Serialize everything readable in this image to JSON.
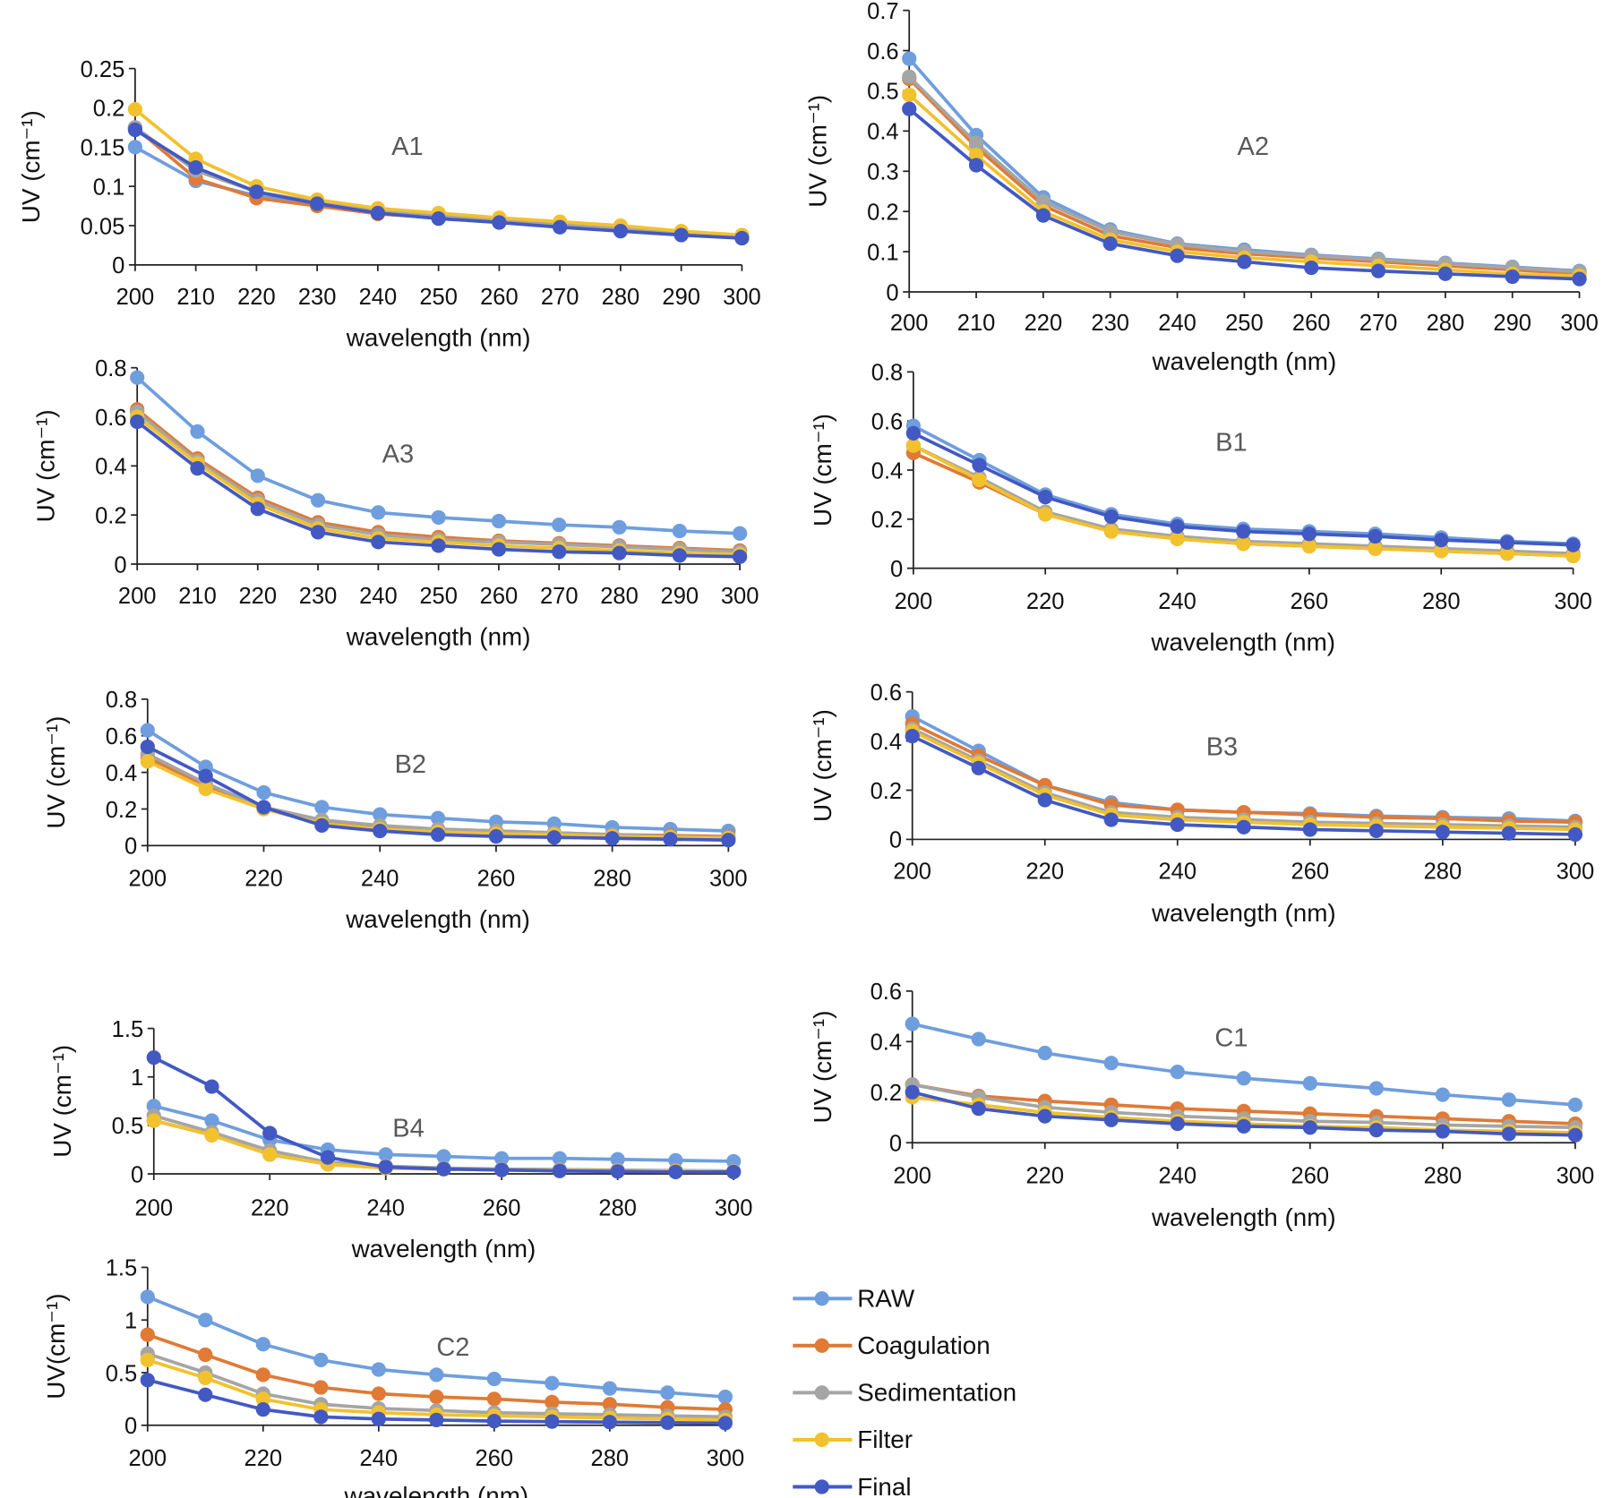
{
  "chart_data": {
    "type": "line",
    "legend": {
      "placement": "bottom-right",
      "entries": [
        "RAW",
        "Coagulation",
        "Sedimentation",
        "Filter",
        "Final"
      ]
    },
    "series_colors": {
      "RAW": "#6f9ede",
      "Coagulation": "#e07a35",
      "Sedimentation": "#a5a5a5",
      "Filter": "#f2c12e",
      "Final": "#4259c3"
    },
    "x": [
      200,
      210,
      220,
      230,
      240,
      250,
      260,
      270,
      280,
      290,
      300
    ],
    "grid": false,
    "panels": [
      {
        "title": "A1",
        "xlabel": "wavelength (nm)",
        "ylabel": "UV (cm⁻¹)",
        "ylim": [
          0,
          0.25
        ],
        "yticks": [
          "0",
          "0.05",
          "0.1",
          "0.15",
          "0.2",
          "0.25"
        ],
        "xticks": [
          "200",
          "210",
          "220",
          "230",
          "240",
          "250",
          "260",
          "270",
          "280",
          "290",
          "300"
        ],
        "series": [
          {
            "name": "RAW",
            "values": [
              0.15,
              0.107,
              0.088,
              0.077,
              0.066,
              0.06,
              0.055,
              0.05,
              0.045,
              0.04,
              0.035
            ]
          },
          {
            "name": "Coagulation",
            "values": [
              0.175,
              0.11,
              0.085,
              0.075,
              0.065,
              0.06,
              0.055,
              0.05,
              0.045,
              0.04,
              0.034
            ]
          },
          {
            "name": "Sedimentation",
            "values": [
              0.175,
              0.12,
              0.093,
              0.08,
              0.068,
              0.062,
              0.057,
              0.052,
              0.047,
              0.041,
              0.036
            ]
          },
          {
            "name": "Filter",
            "values": [
              0.198,
              0.135,
              0.1,
              0.083,
              0.072,
              0.066,
              0.06,
              0.055,
              0.05,
              0.043,
              0.038
            ]
          },
          {
            "name": "Final",
            "values": [
              0.172,
              0.124,
              0.093,
              0.078,
              0.066,
              0.059,
              0.054,
              0.048,
              0.043,
              0.038,
              0.034
            ]
          }
        ]
      },
      {
        "title": "A2",
        "xlabel": "wavelength (nm)",
        "ylabel": "UV (cm⁻¹)",
        "ylim": [
          0,
          0.7
        ],
        "yticks": [
          "0",
          "0.1",
          "0.2",
          "0.3",
          "0.4",
          "0.5",
          "0.6",
          "0.7"
        ],
        "xticks": [
          "200",
          "210",
          "220",
          "230",
          "240",
          "250",
          "260",
          "270",
          "280",
          "290",
          "300"
        ],
        "series": [
          {
            "name": "RAW",
            "values": [
              0.58,
              0.39,
              0.235,
              0.155,
              0.12,
              0.105,
              0.092,
              0.082,
              0.072,
              0.062,
              0.052
            ]
          },
          {
            "name": "Coagulation",
            "values": [
              0.53,
              0.36,
              0.215,
              0.14,
              0.11,
              0.095,
              0.085,
              0.075,
              0.065,
              0.055,
              0.045
            ]
          },
          {
            "name": "Sedimentation",
            "values": [
              0.535,
              0.37,
              0.225,
              0.15,
              0.118,
              0.1,
              0.09,
              0.08,
              0.07,
              0.06,
              0.05
            ]
          },
          {
            "name": "Filter",
            "values": [
              0.49,
              0.34,
              0.2,
              0.13,
              0.1,
              0.085,
              0.075,
              0.065,
              0.055,
              0.045,
              0.04
            ]
          },
          {
            "name": "Final",
            "values": [
              0.455,
              0.315,
              0.19,
              0.12,
              0.09,
              0.075,
              0.06,
              0.052,
              0.045,
              0.038,
              0.032
            ]
          }
        ]
      },
      {
        "title": "A3",
        "xlabel": "wavelength (nm)",
        "ylabel": "UV (cm⁻¹)",
        "ylim": [
          0,
          0.8
        ],
        "yticks": [
          "0",
          "0.2",
          "0.4",
          "0.6",
          "0.8"
        ],
        "xticks": [
          "200",
          "210",
          "220",
          "230",
          "240",
          "250",
          "260",
          "270",
          "280",
          "290",
          "300"
        ],
        "series": [
          {
            "name": "RAW",
            "values": [
              0.76,
              0.54,
              0.36,
              0.26,
              0.21,
              0.19,
              0.175,
              0.16,
              0.15,
              0.135,
              0.125
            ]
          },
          {
            "name": "Coagulation",
            "values": [
              0.63,
              0.43,
              0.27,
              0.17,
              0.13,
              0.11,
              0.095,
              0.085,
              0.075,
              0.065,
              0.055
            ]
          },
          {
            "name": "Sedimentation",
            "values": [
              0.62,
              0.42,
              0.26,
              0.16,
              0.12,
              0.1,
              0.09,
              0.08,
              0.07,
              0.06,
              0.05
            ]
          },
          {
            "name": "Filter",
            "values": [
              0.6,
              0.41,
              0.245,
              0.145,
              0.105,
              0.09,
              0.075,
              0.065,
              0.055,
              0.045,
              0.04
            ]
          },
          {
            "name": "Final",
            "values": [
              0.58,
              0.39,
              0.225,
              0.13,
              0.09,
              0.075,
              0.06,
              0.05,
              0.045,
              0.035,
              0.03
            ]
          }
        ]
      },
      {
        "title": "B1",
        "xlabel": "wavelength (nm)",
        "ylabel": "UV (cm⁻¹)",
        "ylim": [
          0,
          0.8
        ],
        "yticks": [
          "0",
          "0.2",
          "0.4",
          "0.6",
          "0.8"
        ],
        "xticks": [
          "200",
          "220",
          "240",
          "260",
          "280",
          "300"
        ],
        "series": [
          {
            "name": "RAW",
            "values": [
              0.58,
              0.44,
              0.3,
              0.22,
              0.18,
              0.16,
              0.15,
              0.14,
              0.125,
              0.11,
              0.1
            ]
          },
          {
            "name": "Coagulation",
            "values": [
              0.47,
              0.35,
              0.22,
              0.15,
              0.12,
              0.1,
              0.09,
              0.08,
              0.07,
              0.06,
              0.05
            ]
          },
          {
            "name": "Sedimentation",
            "values": [
              0.5,
              0.37,
              0.23,
              0.16,
              0.13,
              0.11,
              0.1,
              0.09,
              0.08,
              0.07,
              0.06
            ]
          },
          {
            "name": "Filter",
            "values": [
              0.5,
              0.36,
              0.22,
              0.15,
              0.12,
              0.1,
              0.09,
              0.08,
              0.07,
              0.06,
              0.05
            ]
          },
          {
            "name": "Final",
            "values": [
              0.55,
              0.42,
              0.29,
              0.21,
              0.17,
              0.15,
              0.14,
              0.13,
              0.115,
              0.105,
              0.095
            ]
          }
        ]
      },
      {
        "title": "B2",
        "xlabel": "wavelength (nm)",
        "ylabel": "UV (cm⁻¹)",
        "ylim": [
          0,
          0.8
        ],
        "yticks": [
          "0",
          "0.2",
          "0.4",
          "0.6",
          "0.8"
        ],
        "xticks": [
          "200",
          "220",
          "240",
          "260",
          "280",
          "300"
        ],
        "series": [
          {
            "name": "RAW",
            "values": [
              0.63,
              0.43,
              0.29,
              0.21,
              0.17,
              0.15,
              0.13,
              0.12,
              0.1,
              0.09,
              0.08
            ]
          },
          {
            "name": "Coagulation",
            "values": [
              0.48,
              0.33,
              0.2,
              0.13,
              0.1,
              0.09,
              0.08,
              0.07,
              0.06,
              0.055,
              0.05
            ]
          },
          {
            "name": "Sedimentation",
            "values": [
              0.5,
              0.34,
              0.21,
              0.14,
              0.11,
              0.09,
              0.08,
              0.07,
              0.06,
              0.05,
              0.045
            ]
          },
          {
            "name": "Filter",
            "values": [
              0.46,
              0.31,
              0.2,
              0.12,
              0.09,
              0.075,
              0.065,
              0.06,
              0.05,
              0.045,
              0.04
            ]
          },
          {
            "name": "Final",
            "values": [
              0.54,
              0.38,
              0.21,
              0.11,
              0.08,
              0.06,
              0.05,
              0.045,
              0.04,
              0.035,
              0.03
            ]
          }
        ]
      },
      {
        "title": "B3",
        "xlabel": "wavelength (nm)",
        "ylabel": "UV (cm⁻¹)",
        "ylim": [
          0,
          0.6
        ],
        "yticks": [
          "0",
          "0.2",
          "0.4",
          "0.6"
        ],
        "xticks": [
          "200",
          "220",
          "240",
          "260",
          "280",
          "300"
        ],
        "series": [
          {
            "name": "RAW",
            "values": [
              0.5,
              0.36,
              0.22,
              0.15,
              0.12,
              0.11,
              0.105,
              0.095,
              0.09,
              0.085,
              0.075
            ]
          },
          {
            "name": "Coagulation",
            "values": [
              0.47,
              0.34,
              0.22,
              0.14,
              0.12,
              0.11,
              0.1,
              0.09,
              0.085,
              0.075,
              0.07
            ]
          },
          {
            "name": "Sedimentation",
            "values": [
              0.45,
              0.32,
              0.19,
              0.11,
              0.09,
              0.08,
              0.07,
              0.065,
              0.06,
              0.055,
              0.05
            ]
          },
          {
            "name": "Filter",
            "values": [
              0.44,
              0.31,
              0.18,
              0.1,
              0.08,
              0.07,
              0.06,
              0.055,
              0.05,
              0.045,
              0.04
            ]
          },
          {
            "name": "Final",
            "values": [
              0.42,
              0.29,
              0.16,
              0.08,
              0.06,
              0.05,
              0.04,
              0.035,
              0.03,
              0.025,
              0.02
            ]
          }
        ]
      },
      {
        "title": "B4",
        "xlabel": "wavelength (nm)",
        "ylabel": "UV (cm⁻¹)",
        "ylim": [
          0,
          1.5
        ],
        "yticks": [
          "0",
          "0.5",
          "1",
          "1.5"
        ],
        "xticks": [
          "200",
          "220",
          "240",
          "260",
          "280",
          "300"
        ],
        "series": [
          {
            "name": "RAW",
            "values": [
              0.7,
              0.55,
              0.35,
              0.25,
              0.2,
              0.18,
              0.16,
              0.16,
              0.15,
              0.14,
              0.13
            ]
          },
          {
            "name": "Coagulation",
            "values": [
              0.55,
              0.4,
              0.2,
              0.1,
              0.06,
              0.05,
              0.04,
              0.035,
              0.03,
              0.03,
              0.025
            ]
          },
          {
            "name": "Sedimentation",
            "values": [
              0.6,
              0.43,
              0.24,
              0.12,
              0.08,
              0.06,
              0.05,
              0.045,
              0.04,
              0.035,
              0.03
            ]
          },
          {
            "name": "Filter",
            "values": [
              0.55,
              0.4,
              0.2,
              0.1,
              0.06,
              0.05,
              0.04,
              0.035,
              0.03,
              0.03,
              0.025
            ]
          },
          {
            "name": "Final",
            "values": [
              1.2,
              0.9,
              0.42,
              0.17,
              0.07,
              0.05,
              0.04,
              0.03,
              0.025,
              0.02,
              0.02
            ]
          }
        ]
      },
      {
        "title": "C1",
        "xlabel": "wavelength (nm)",
        "ylabel": "UV (cm⁻¹)",
        "ylim": [
          0,
          0.6
        ],
        "yticks": [
          "0",
          "0.2",
          "0.4",
          "0.6"
        ],
        "xticks": [
          "200",
          "220",
          "240",
          "260",
          "280",
          "300"
        ],
        "series": [
          {
            "name": "RAW",
            "values": [
              0.47,
              0.41,
              0.355,
              0.315,
              0.28,
              0.255,
              0.235,
              0.215,
              0.19,
              0.17,
              0.15
            ]
          },
          {
            "name": "Coagulation",
            "values": [
              0.23,
              0.185,
              0.165,
              0.15,
              0.135,
              0.125,
              0.115,
              0.105,
              0.095,
              0.085,
              0.075
            ]
          },
          {
            "name": "Sedimentation",
            "values": [
              0.23,
              0.18,
              0.14,
              0.12,
              0.105,
              0.095,
              0.085,
              0.08,
              0.07,
              0.065,
              0.06
            ]
          },
          {
            "name": "Filter",
            "values": [
              0.18,
              0.15,
              0.12,
              0.1,
              0.085,
              0.075,
              0.065,
              0.06,
              0.05,
              0.045,
              0.04
            ]
          },
          {
            "name": "Final",
            "values": [
              0.2,
              0.135,
              0.105,
              0.09,
              0.075,
              0.065,
              0.06,
              0.05,
              0.045,
              0.035,
              0.03
            ]
          }
        ]
      },
      {
        "title": "C2",
        "xlabel": "wavelength (nm)",
        "ylabel": "UV(cm⁻¹)",
        "ylim": [
          0,
          1.5
        ],
        "yticks": [
          "0",
          "0.5",
          "1",
          "1.5"
        ],
        "xticks": [
          "200",
          "220",
          "240",
          "260",
          "280",
          "300"
        ],
        "series": [
          {
            "name": "RAW",
            "values": [
              1.22,
              1.0,
              0.77,
              0.62,
              0.53,
              0.48,
              0.44,
              0.4,
              0.35,
              0.31,
              0.27
            ]
          },
          {
            "name": "Coagulation",
            "values": [
              0.86,
              0.67,
              0.48,
              0.36,
              0.3,
              0.27,
              0.25,
              0.22,
              0.2,
              0.17,
              0.15
            ]
          },
          {
            "name": "Sedimentation",
            "values": [
              0.68,
              0.5,
              0.3,
              0.2,
              0.16,
              0.14,
              0.12,
              0.11,
              0.1,
              0.09,
              0.08
            ]
          },
          {
            "name": "Filter",
            "values": [
              0.62,
              0.45,
              0.25,
              0.15,
              0.12,
              0.1,
              0.09,
              0.08,
              0.07,
              0.06,
              0.05
            ]
          },
          {
            "name": "Final",
            "values": [
              0.43,
              0.29,
              0.15,
              0.08,
              0.06,
              0.05,
              0.04,
              0.035,
              0.03,
              0.025,
              0.02
            ]
          }
        ]
      }
    ]
  }
}
